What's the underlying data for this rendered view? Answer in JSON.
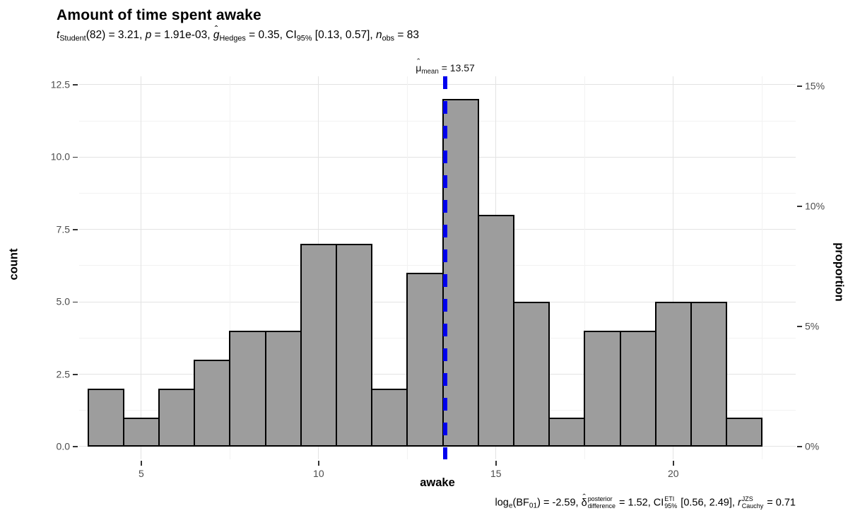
{
  "header": {
    "title": "Amount of time spent awake"
  },
  "stats": {
    "subtitle_plain": "t_Student(82) = 3.21, p = 1.91e-03, ĝ_Hedges = 0.35, CI_95% [0.13, 0.57], n_obs = 83",
    "caption_plain": "log_e(BF_01) = -2.59, δ̂_difference^posterior = 1.52, CI_95%^ETI [0.56, 2.49], r_Cauchy^JZS = 0.71",
    "mean_label_plain": "μ̂_mean = 13.57",
    "subtitle": [
      {
        "t": "t",
        "i": 1
      },
      {
        "t": "Student",
        "sub": 1
      },
      {
        "t": "(82) = 3.21, "
      },
      {
        "t": "p",
        "i": 1
      },
      {
        "t": " = 1.91e-03, "
      },
      {
        "t": "g",
        "i": 1,
        "hat": 1
      },
      {
        "t": "Hedges",
        "sub": 1
      },
      {
        "t": " = 0.35, CI"
      },
      {
        "t": "95%",
        "sub": 1
      },
      {
        "t": " [0.13, 0.57], "
      },
      {
        "t": "n",
        "i": 1
      },
      {
        "t": "obs",
        "sub": 1
      },
      {
        "t": " = 83"
      }
    ],
    "caption": [
      {
        "t": "log"
      },
      {
        "t": "e",
        "sub": 1
      },
      {
        "t": "(BF"
      },
      {
        "t": "01",
        "sub": 1
      },
      {
        "t": ") = -2.59, "
      },
      {
        "t": "δ",
        "hat": 1
      },
      {
        "top": "posterior",
        "bot": "difference"
      },
      {
        "t": " = 1.52, CI"
      },
      {
        "top": "ETI",
        "bot": "95%"
      },
      {
        "t": " [0.56, 2.49], "
      },
      {
        "t": "r",
        "i": 1
      },
      {
        "top": "JZS",
        "bot": "Cauchy"
      },
      {
        "t": " = 0.71"
      }
    ],
    "mean_label": [
      {
        "t": "μ",
        "hat": 1
      },
      {
        "t": "mean",
        "sub": 1
      },
      {
        "t": " = 13.57"
      }
    ]
  },
  "chart_data": {
    "type": "bar",
    "variant": "histogram",
    "title": "Amount of time spent awake",
    "xlabel": "awake",
    "ylabel_left": "count",
    "ylabel_right": "proportion",
    "n_obs": 83,
    "bin_start": 3.5,
    "bin_width": 1,
    "bin_centers": [
      4,
      5,
      6,
      7,
      8,
      9,
      10,
      11,
      12,
      13,
      14,
      15,
      16,
      17,
      18,
      19,
      20,
      21,
      22
    ],
    "counts": [
      2,
      1,
      2,
      3,
      4,
      4,
      7,
      7,
      2,
      6,
      12,
      8,
      5,
      1,
      4,
      4,
      5,
      5,
      1
    ],
    "mean_line": {
      "x": 13.57,
      "value": "13.57"
    },
    "x_ticks": [
      {
        "label": "5",
        "value": 5
      },
      {
        "label": "10",
        "value": 10
      },
      {
        "label": "15",
        "value": 15
      },
      {
        "label": "20",
        "value": 20
      }
    ],
    "x_minor_gridlines": [
      7.5,
      12.5,
      17.5,
      22.5
    ],
    "y_ticks_left": [
      {
        "label": "0.0",
        "value": 0
      },
      {
        "label": "2.5",
        "value": 2.5
      },
      {
        "label": "5.0",
        "value": 5
      },
      {
        "label": "7.5",
        "value": 7.5
      },
      {
        "label": "10.0",
        "value": 10
      },
      {
        "label": "12.5",
        "value": 12.5
      }
    ],
    "y_minor_gridlines": [
      1.25,
      3.75,
      6.25,
      8.75,
      11.25
    ],
    "y_ticks_right": [
      {
        "label": "0%",
        "pct": 0
      },
      {
        "label": "5%",
        "pct": 5
      },
      {
        "label": "10%",
        "pct": 10
      },
      {
        "label": "15%",
        "pct": 15
      }
    ],
    "x_domain": [
      3.25,
      23.45
    ],
    "y_domain": [
      -0.44,
      12.79
    ],
    "grid": true,
    "legend": "none",
    "colors": {
      "bar_fill": "#9d9d9d",
      "bar_stroke": "#000000",
      "mean_line_blue": "#0000EE",
      "grid_major": "#e3e3e3",
      "grid_minor": "#f2f2f2",
      "tick_text": "#4d4d4d",
      "tick_mark": "#333333",
      "background": "#ffffff"
    }
  }
}
